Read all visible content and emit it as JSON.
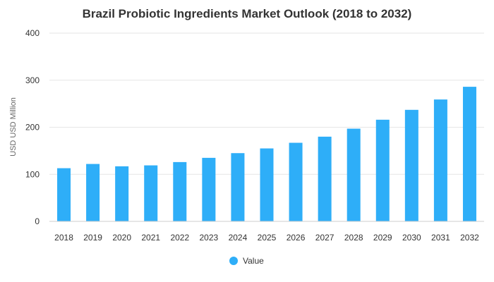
{
  "chart_data": {
    "type": "bar",
    "title": "Brazil Probiotic Ingredients Market Outlook (2018 to 2032)",
    "ylabel": "USD USD Million",
    "xlabel": "",
    "categories": [
      "2018",
      "2019",
      "2020",
      "2021",
      "2022",
      "2023",
      "2024",
      "2025",
      "2026",
      "2027",
      "2028",
      "2029",
      "2030",
      "2031",
      "2032"
    ],
    "series": [
      {
        "name": "Value",
        "color": "#2eaef8",
        "values": [
          113,
          122,
          117,
          119,
          126,
          135,
          145,
          155,
          167,
          180,
          197,
          216,
          237,
          259,
          286
        ]
      }
    ],
    "ylim": [
      0,
      400
    ],
    "yticks": [
      0,
      100,
      200,
      300,
      400
    ],
    "grid": true,
    "legend": "bottom-center"
  }
}
